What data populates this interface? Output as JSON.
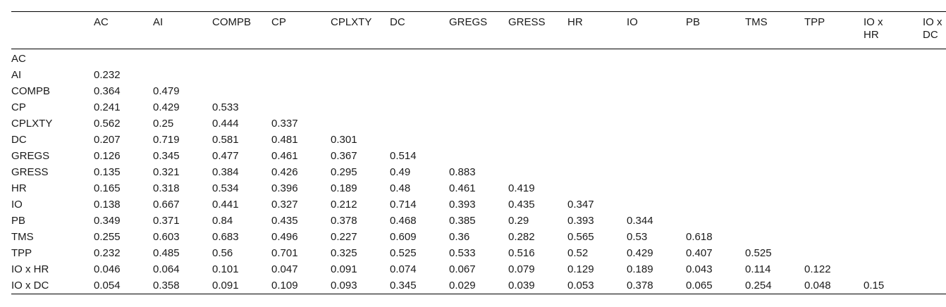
{
  "table": {
    "columns": [
      "AC",
      "AI",
      "COMPB",
      "CP",
      "CPLXTY",
      "DC",
      "GREGS",
      "GRESS",
      "HR",
      "IO",
      "PB",
      "TMS",
      "TPP",
      "IO x HR",
      "IO x DC"
    ],
    "rows": [
      {
        "label": "AC",
        "values": [
          "",
          "",
          "",
          "",
          "",
          "",
          "",
          "",
          "",
          "",
          "",
          "",
          "",
          "",
          ""
        ]
      },
      {
        "label": "AI",
        "values": [
          "0.232",
          "",
          "",
          "",
          "",
          "",
          "",
          "",
          "",
          "",
          "",
          "",
          "",
          "",
          ""
        ]
      },
      {
        "label": "COMPB",
        "values": [
          "0.364",
          "0.479",
          "",
          "",
          "",
          "",
          "",
          "",
          "",
          "",
          "",
          "",
          "",
          "",
          ""
        ]
      },
      {
        "label": "CP",
        "values": [
          "0.241",
          "0.429",
          "0.533",
          "",
          "",
          "",
          "",
          "",
          "",
          "",
          "",
          "",
          "",
          "",
          ""
        ]
      },
      {
        "label": "CPLXTY",
        "values": [
          "0.562",
          "0.25",
          "0.444",
          "0.337",
          "",
          "",
          "",
          "",
          "",
          "",
          "",
          "",
          "",
          "",
          ""
        ]
      },
      {
        "label": "DC",
        "values": [
          "0.207",
          "0.719",
          "0.581",
          "0.481",
          "0.301",
          "",
          "",
          "",
          "",
          "",
          "",
          "",
          "",
          "",
          ""
        ]
      },
      {
        "label": "GREGS",
        "values": [
          "0.126",
          "0.345",
          "0.477",
          "0.461",
          "0.367",
          "0.514",
          "",
          "",
          "",
          "",
          "",
          "",
          "",
          "",
          ""
        ]
      },
      {
        "label": "GRESS",
        "values": [
          "0.135",
          "0.321",
          "0.384",
          "0.426",
          "0.295",
          "0.49",
          "0.883",
          "",
          "",
          "",
          "",
          "",
          "",
          "",
          ""
        ]
      },
      {
        "label": "HR",
        "values": [
          "0.165",
          "0.318",
          "0.534",
          "0.396",
          "0.189",
          "0.48",
          "0.461",
          "0.419",
          "",
          "",
          "",
          "",
          "",
          "",
          ""
        ]
      },
      {
        "label": "IO",
        "values": [
          "0.138",
          "0.667",
          "0.441",
          "0.327",
          "0.212",
          "0.714",
          "0.393",
          "0.435",
          "0.347",
          "",
          "",
          "",
          "",
          "",
          ""
        ]
      },
      {
        "label": "PB",
        "values": [
          "0.349",
          "0.371",
          "0.84",
          "0.435",
          "0.378",
          "0.468",
          "0.385",
          "0.29",
          "0.393",
          "0.344",
          "",
          "",
          "",
          "",
          ""
        ]
      },
      {
        "label": "TMS",
        "values": [
          "0.255",
          "0.603",
          "0.683",
          "0.496",
          "0.227",
          "0.609",
          "0.36",
          "0.282",
          "0.565",
          "0.53",
          "0.618",
          "",
          "",
          "",
          ""
        ]
      },
      {
        "label": "TPP",
        "values": [
          "0.232",
          "0.485",
          "0.56",
          "0.701",
          "0.325",
          "0.525",
          "0.533",
          "0.516",
          "0.52",
          "0.429",
          "0.407",
          "0.525",
          "",
          "",
          ""
        ]
      },
      {
        "label": "IO x HR",
        "values": [
          "0.046",
          "0.064",
          "0.101",
          "0.047",
          "0.091",
          "0.074",
          "0.067",
          "0.079",
          "0.129",
          "0.189",
          "0.043",
          "0.114",
          "0.122",
          "",
          ""
        ]
      },
      {
        "label": "IO x DC",
        "values": [
          "0.054",
          "0.358",
          "0.091",
          "0.109",
          "0.093",
          "0.345",
          "0.029",
          "0.039",
          "0.053",
          "0.378",
          "0.065",
          "0.254",
          "0.048",
          "0.15",
          ""
        ]
      }
    ]
  }
}
